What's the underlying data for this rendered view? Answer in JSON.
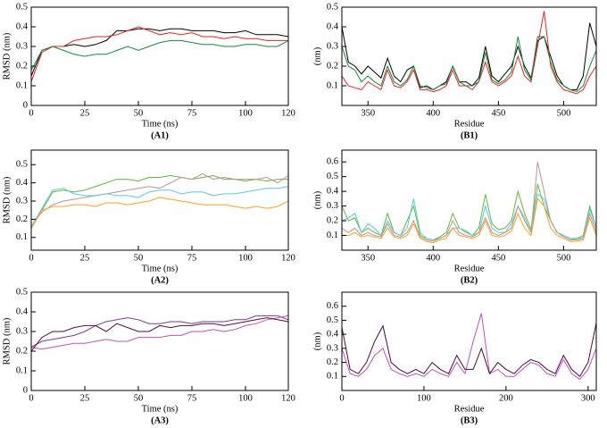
{
  "chart_data": [
    {
      "type": "line",
      "caption": "(A1)",
      "xlabel": "Time (ns)",
      "ylabel": "RMSD (nm)",
      "xlim": [
        0,
        120
      ],
      "xticks": [
        0,
        25,
        50,
        75,
        100,
        120
      ],
      "ylim": [
        0,
        0.5
      ],
      "yticks": [
        0,
        0.1,
        0.2,
        0.3,
        0.4,
        0.5
      ],
      "x": [
        0,
        5,
        10,
        15,
        20,
        25,
        30,
        35,
        40,
        45,
        50,
        55,
        60,
        65,
        70,
        75,
        80,
        85,
        90,
        95,
        100,
        105,
        110,
        115,
        120
      ],
      "series": [
        {
          "color": "#000000",
          "values": [
            0.15,
            0.28,
            0.3,
            0.3,
            0.31,
            0.3,
            0.31,
            0.33,
            0.38,
            0.38,
            0.39,
            0.39,
            0.38,
            0.39,
            0.39,
            0.38,
            0.38,
            0.38,
            0.37,
            0.37,
            0.38,
            0.36,
            0.36,
            0.36,
            0.35
          ]
        },
        {
          "color": "#ee2222",
          "values": [
            0.12,
            0.27,
            0.3,
            0.3,
            0.33,
            0.34,
            0.35,
            0.35,
            0.36,
            0.38,
            0.4,
            0.38,
            0.36,
            0.37,
            0.36,
            0.37,
            0.35,
            0.35,
            0.34,
            0.35,
            0.34,
            0.34,
            0.33,
            0.33,
            0.33
          ]
        },
        {
          "color": "#15883a",
          "values": [
            0.18,
            0.28,
            0.3,
            0.28,
            0.26,
            0.25,
            0.26,
            0.26,
            0.28,
            0.3,
            0.28,
            0.3,
            0.32,
            0.33,
            0.33,
            0.32,
            0.31,
            0.31,
            0.3,
            0.3,
            0.31,
            0.31,
            0.3,
            0.3,
            0.33
          ]
        }
      ]
    },
    {
      "type": "line",
      "caption": "(B1)",
      "xlabel": "Residue",
      "ylabel": "(nm)",
      "xlim": [
        330,
        525
      ],
      "xticks": [
        350,
        400,
        450,
        500
      ],
      "ylim": [
        0,
        0.5
      ],
      "yticks": [
        0.1,
        0.2,
        0.3,
        0.4,
        0.5
      ],
      "x": [
        330,
        335,
        340,
        345,
        350,
        355,
        360,
        365,
        370,
        375,
        380,
        385,
        390,
        395,
        400,
        405,
        410,
        415,
        420,
        425,
        430,
        435,
        440,
        445,
        450,
        455,
        460,
        465,
        470,
        475,
        480,
        485,
        490,
        495,
        500,
        505,
        510,
        515,
        520,
        525
      ],
      "series": [
        {
          "color": "#000000",
          "values": [
            0.4,
            0.22,
            0.2,
            0.16,
            0.2,
            0.17,
            0.14,
            0.24,
            0.15,
            0.12,
            0.18,
            0.2,
            0.09,
            0.1,
            0.08,
            0.1,
            0.12,
            0.2,
            0.12,
            0.12,
            0.1,
            0.14,
            0.3,
            0.15,
            0.12,
            0.16,
            0.2,
            0.3,
            0.2,
            0.14,
            0.33,
            0.35,
            0.25,
            0.15,
            0.1,
            0.08,
            0.08,
            0.15,
            0.42,
            0.3
          ]
        },
        {
          "color": "#ee2222",
          "values": [
            0.15,
            0.1,
            0.09,
            0.08,
            0.12,
            0.1,
            0.08,
            0.18,
            0.1,
            0.09,
            0.12,
            0.18,
            0.08,
            0.08,
            0.07,
            0.08,
            0.1,
            0.18,
            0.1,
            0.1,
            0.08,
            0.12,
            0.22,
            0.12,
            0.1,
            0.12,
            0.15,
            0.25,
            0.15,
            0.12,
            0.3,
            0.48,
            0.2,
            0.12,
            0.08,
            0.07,
            0.06,
            0.08,
            0.15,
            0.2
          ]
        },
        {
          "color": "#15883a",
          "values": [
            0.3,
            0.2,
            0.18,
            0.12,
            0.15,
            0.12,
            0.1,
            0.2,
            0.12,
            0.1,
            0.13,
            0.2,
            0.1,
            0.09,
            0.08,
            0.1,
            0.11,
            0.2,
            0.12,
            0.1,
            0.1,
            0.12,
            0.27,
            0.13,
            0.11,
            0.13,
            0.17,
            0.35,
            0.18,
            0.13,
            0.35,
            0.35,
            0.22,
            0.13,
            0.1,
            0.08,
            0.07,
            0.1,
            0.2,
            0.28
          ]
        }
      ]
    },
    {
      "type": "line",
      "caption": "(A2)",
      "xlabel": "Time (ns)",
      "ylabel": "RMSD (nm)",
      "xlim": [
        0,
        120
      ],
      "xticks": [
        0,
        25,
        50,
        75,
        100,
        120
      ],
      "ylim": [
        0.03,
        0.58
      ],
      "yticks": [
        0.1,
        0.2,
        0.3,
        0.4,
        0.5
      ],
      "x": [
        0,
        5,
        10,
        15,
        20,
        25,
        30,
        35,
        40,
        45,
        50,
        55,
        60,
        65,
        70,
        75,
        80,
        85,
        90,
        95,
        100,
        105,
        110,
        115,
        120
      ],
      "series": [
        {
          "color": "#5cbc3c",
          "values": [
            0.15,
            0.25,
            0.35,
            0.36,
            0.35,
            0.36,
            0.38,
            0.4,
            0.42,
            0.42,
            0.41,
            0.43,
            0.43,
            0.44,
            0.43,
            0.42,
            0.43,
            0.44,
            0.42,
            0.42,
            0.41,
            0.42,
            0.41,
            0.42,
            0.42
          ]
        },
        {
          "color": "#c39090",
          "values": [
            0.16,
            0.24,
            0.28,
            0.3,
            0.31,
            0.32,
            0.33,
            0.34,
            0.35,
            0.36,
            0.37,
            0.38,
            0.37,
            0.4,
            0.43,
            0.42,
            0.45,
            0.42,
            0.43,
            0.42,
            0.42,
            0.42,
            0.43,
            0.4,
            0.44
          ]
        },
        {
          "color": "#5cc8e0",
          "values": [
            0.16,
            0.26,
            0.36,
            0.37,
            0.34,
            0.33,
            0.33,
            0.34,
            0.33,
            0.33,
            0.32,
            0.35,
            0.36,
            0.36,
            0.34,
            0.35,
            0.35,
            0.33,
            0.34,
            0.34,
            0.35,
            0.36,
            0.37,
            0.37,
            0.38
          ]
        },
        {
          "color": "#ffa020",
          "values": [
            0.15,
            0.25,
            0.27,
            0.27,
            0.28,
            0.28,
            0.27,
            0.29,
            0.29,
            0.28,
            0.29,
            0.3,
            0.32,
            0.31,
            0.3,
            0.29,
            0.28,
            0.28,
            0.28,
            0.27,
            0.26,
            0.27,
            0.26,
            0.27,
            0.3
          ]
        }
      ]
    },
    {
      "type": "line",
      "caption": "(B2)",
      "xlabel": "Residue",
      "ylabel": "(nm)",
      "xlim": [
        330,
        525
      ],
      "xticks": [
        350,
        400,
        450,
        500
      ],
      "ylim": [
        0,
        0.68
      ],
      "yticks": [
        0.1,
        0.2,
        0.3,
        0.4,
        0.5,
        0.6
      ],
      "x": [
        330,
        335,
        340,
        345,
        350,
        355,
        360,
        365,
        370,
        375,
        380,
        385,
        390,
        395,
        400,
        405,
        410,
        415,
        420,
        425,
        430,
        435,
        440,
        445,
        450,
        455,
        460,
        465,
        470,
        475,
        480,
        485,
        490,
        495,
        500,
        505,
        510,
        515,
        520,
        525
      ],
      "series": [
        {
          "color": "#5cbc3c",
          "values": [
            0.3,
            0.2,
            0.22,
            0.12,
            0.15,
            0.12,
            0.1,
            0.25,
            0.12,
            0.1,
            0.2,
            0.3,
            0.1,
            0.08,
            0.07,
            0.09,
            0.12,
            0.25,
            0.15,
            0.13,
            0.1,
            0.15,
            0.38,
            0.18,
            0.14,
            0.15,
            0.2,
            0.4,
            0.25,
            0.14,
            0.45,
            0.3,
            0.2,
            0.12,
            0.1,
            0.08,
            0.08,
            0.1,
            0.3,
            0.15
          ]
        },
        {
          "color": "#5cc8e0",
          "values": [
            0.2,
            0.22,
            0.25,
            0.12,
            0.18,
            0.15,
            0.1,
            0.2,
            0.12,
            0.1,
            0.15,
            0.35,
            0.12,
            0.08,
            0.07,
            0.08,
            0.1,
            0.15,
            0.15,
            0.12,
            0.1,
            0.12,
            0.3,
            0.15,
            0.12,
            0.12,
            0.18,
            0.3,
            0.22,
            0.12,
            0.38,
            0.35,
            0.2,
            0.12,
            0.1,
            0.08,
            0.07,
            0.09,
            0.28,
            0.15
          ]
        },
        {
          "color": "#c39090",
          "values": [
            0.15,
            0.12,
            0.15,
            0.1,
            0.12,
            0.1,
            0.09,
            0.18,
            0.1,
            0.09,
            0.12,
            0.2,
            0.09,
            0.07,
            0.06,
            0.08,
            0.1,
            0.2,
            0.12,
            0.1,
            0.09,
            0.12,
            0.22,
            0.12,
            0.1,
            0.12,
            0.15,
            0.3,
            0.2,
            0.12,
            0.6,
            0.4,
            0.2,
            0.12,
            0.09,
            0.07,
            0.07,
            0.08,
            0.25,
            0.12
          ]
        },
        {
          "color": "#ffa020",
          "values": [
            0.1,
            0.1,
            0.12,
            0.09,
            0.1,
            0.09,
            0.08,
            0.15,
            0.09,
            0.08,
            0.1,
            0.18,
            0.08,
            0.06,
            0.05,
            0.07,
            0.08,
            0.15,
            0.1,
            0.09,
            0.08,
            0.1,
            0.2,
            0.1,
            0.09,
            0.1,
            0.13,
            0.25,
            0.15,
            0.1,
            0.35,
            0.3,
            0.15,
            0.1,
            0.08,
            0.06,
            0.06,
            0.07,
            0.22,
            0.1
          ]
        }
      ]
    },
    {
      "type": "line",
      "caption": "(A3)",
      "xlabel": "Time (ns)",
      "ylabel": "RMSD (nm)",
      "xlim": [
        0,
        120
      ],
      "xticks": [
        0,
        25,
        50,
        75,
        100,
        120
      ],
      "ylim": [
        0,
        0.5
      ],
      "yticks": [
        0,
        0.1,
        0.2,
        0.3,
        0.4,
        0.5
      ],
      "x": [
        0,
        5,
        10,
        15,
        20,
        25,
        30,
        35,
        40,
        45,
        50,
        55,
        60,
        65,
        70,
        75,
        80,
        85,
        90,
        95,
        100,
        105,
        110,
        115,
        120
      ],
      "series": [
        {
          "color": "#7a3a9a",
          "values": [
            0.22,
            0.25,
            0.26,
            0.27,
            0.28,
            0.3,
            0.33,
            0.35,
            0.36,
            0.37,
            0.36,
            0.34,
            0.34,
            0.35,
            0.35,
            0.34,
            0.35,
            0.35,
            0.35,
            0.36,
            0.36,
            0.38,
            0.38,
            0.38,
            0.36
          ]
        },
        {
          "color": "#c050c0",
          "values": [
            0.22,
            0.21,
            0.22,
            0.23,
            0.24,
            0.24,
            0.25,
            0.26,
            0.25,
            0.25,
            0.27,
            0.27,
            0.27,
            0.28,
            0.28,
            0.3,
            0.3,
            0.31,
            0.3,
            0.31,
            0.33,
            0.34,
            0.36,
            0.37,
            0.38
          ]
        },
        {
          "color": "#5a0a3c",
          "values": [
            0.2,
            0.27,
            0.3,
            0.3,
            0.32,
            0.33,
            0.33,
            0.3,
            0.34,
            0.32,
            0.3,
            0.3,
            0.33,
            0.32,
            0.33,
            0.33,
            0.34,
            0.34,
            0.33,
            0.34,
            0.35,
            0.36,
            0.37,
            0.36,
            0.35
          ]
        }
      ]
    },
    {
      "type": "line",
      "caption": "(B3)",
      "xlabel": "Residue",
      "ylabel": "(nm)",
      "xlim": [
        0,
        310
      ],
      "xticks": [
        0,
        100,
        200,
        300
      ],
      "ylim": [
        0,
        0.7
      ],
      "yticks": [
        0.1,
        0.2,
        0.3,
        0.4,
        0.5,
        0.6
      ],
      "x": [
        0,
        10,
        20,
        30,
        40,
        50,
        60,
        70,
        80,
        90,
        100,
        110,
        120,
        130,
        140,
        150,
        160,
        170,
        180,
        190,
        200,
        210,
        220,
        230,
        240,
        250,
        260,
        270,
        280,
        290,
        300,
        310
      ],
      "series": [
        {
          "color": "#c050c0",
          "values": [
            0.3,
            0.12,
            0.1,
            0.15,
            0.25,
            0.3,
            0.15,
            0.12,
            0.1,
            0.12,
            0.1,
            0.15,
            0.12,
            0.1,
            0.2,
            0.12,
            0.35,
            0.55,
            0.12,
            0.15,
            0.1,
            0.1,
            0.15,
            0.2,
            0.18,
            0.12,
            0.1,
            0.22,
            0.12,
            0.08,
            0.15,
            0.3
          ]
        },
        {
          "color": "#4a0a3a",
          "values": [
            0.45,
            0.15,
            0.12,
            0.2,
            0.35,
            0.46,
            0.2,
            0.15,
            0.12,
            0.15,
            0.12,
            0.2,
            0.15,
            0.12,
            0.25,
            0.15,
            0.15,
            0.3,
            0.12,
            0.2,
            0.15,
            0.12,
            0.18,
            0.22,
            0.2,
            0.15,
            0.12,
            0.25,
            0.15,
            0.1,
            0.2,
            0.48
          ]
        }
      ]
    }
  ]
}
